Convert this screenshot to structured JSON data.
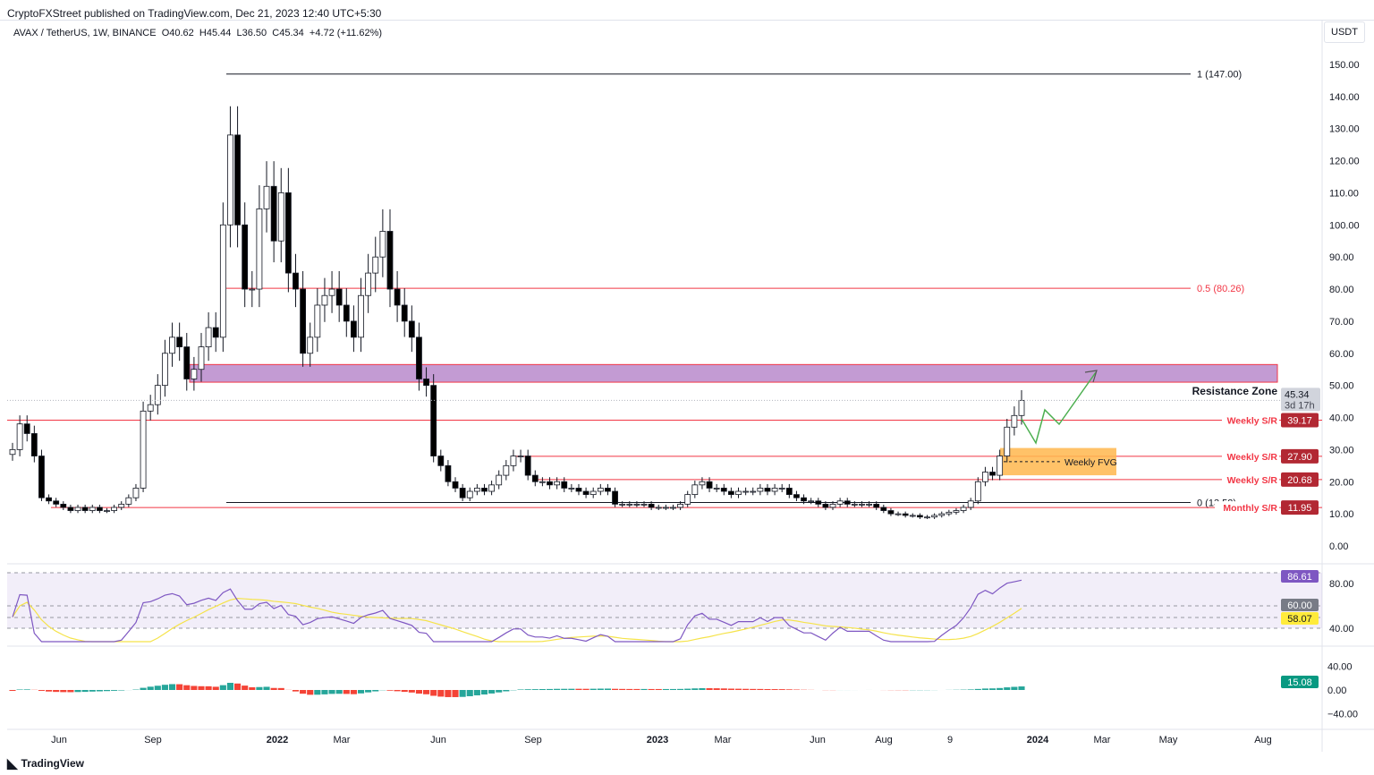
{
  "publisher": "CryptoFXStreet published on TradingView.com, Dec 21, 2023 12:40 UTC+5:30",
  "legend": {
    "symbol": "AVAX / TetherUS, 1W, BINANCE",
    "open": "O40.62",
    "high": "H45.44",
    "low": "L36.50",
    "close": "C45.34",
    "change": "+4.72 (+11.62%)"
  },
  "currency": "USDT",
  "footer": "TradingView",
  "colors": {
    "up": "#ffffff",
    "down": "#000000",
    "sr": "#f23645",
    "zone": "#c39bd3",
    "fvg": "#ffb74d",
    "rsi": "#7e57c2",
    "rsi_ma": "#f5e34a",
    "hist_up": "#26a69a",
    "hist_down": "#f44336",
    "projection": "#4caf50"
  },
  "chart_data": {
    "type": "candlestick",
    "title": "AVAX / TetherUS, 1W, BINANCE",
    "ylabel": "USDT",
    "ylim": [
      0,
      155
    ],
    "price_ticks": [
      "150.00",
      "140.00",
      "130.00",
      "120.00",
      "110.00",
      "100.00",
      "90.00",
      "80.00",
      "70.00",
      "60.00",
      "50.00",
      "40.00",
      "30.00",
      "20.00",
      "10.00",
      "0.00"
    ],
    "time_ticks": [
      "Jun",
      "Sep",
      "2022",
      "Mar",
      "Jun",
      "Sep",
      "2023",
      "Mar",
      "Jun",
      "Aug",
      "9",
      "2024",
      "Mar",
      "May",
      "Aug"
    ],
    "weekly_closes": [
      30,
      38,
      35,
      28,
      15,
      14,
      13,
      12,
      11,
      12,
      11,
      12,
      11,
      11,
      12,
      13,
      15,
      18,
      42,
      44,
      50,
      60,
      65,
      62,
      52,
      55,
      62,
      68,
      65,
      100,
      128,
      100,
      80,
      80,
      105,
      112,
      95,
      110,
      85,
      80,
      60,
      65,
      75,
      78,
      80,
      75,
      70,
      65,
      78,
      85,
      90,
      98,
      80,
      75,
      70,
      65,
      52,
      50,
      28,
      25,
      20,
      18,
      15,
      17,
      18,
      17,
      19,
      22,
      25,
      28,
      28,
      22,
      20,
      20,
      19,
      20,
      18,
      18,
      17,
      16,
      17,
      18,
      17,
      13,
      13,
      13,
      13,
      13,
      12,
      12,
      12,
      12,
      13,
      16,
      19,
      20,
      18,
      18,
      17,
      16,
      17,
      17,
      17,
      18,
      17,
      18,
      18,
      16,
      15,
      14,
      14,
      13,
      12,
      13,
      14,
      13,
      13,
      13,
      13,
      12,
      11,
      10,
      10,
      9.5,
      9.5,
      9,
      9,
      9.5,
      10,
      10.5,
      11,
      12,
      14,
      20,
      23,
      22,
      28,
      37,
      40.62,
      45.34
    ],
    "last_price": "45.34",
    "countdown": "3d 17h",
    "fib": [
      {
        "label": "1 (147.00)",
        "value": 147
      },
      {
        "label": "0.5 (80.26)",
        "value": 80.26
      },
      {
        "label": "0 (13.52)",
        "value": 13.52
      }
    ],
    "levels": [
      {
        "label": "Weekly S/R",
        "value": 39.17,
        "tag": "39.17"
      },
      {
        "label": "Weekly S/R",
        "value": 27.9,
        "tag": "27.90"
      },
      {
        "label": "Weekly S/R",
        "value": 20.68,
        "tag": "20.68"
      },
      {
        "label": "Monthly S/R",
        "value": 11.95,
        "tag": "11.95"
      }
    ],
    "resistance_zone": {
      "label": "Resistance Zone",
      "from": 51,
      "to": 56.5
    },
    "fvg": {
      "label": "Weekly FVG",
      "from": 22,
      "to": 30.5
    },
    "rsi": {
      "ticks": [
        "80.00",
        "40.00"
      ],
      "value": "86.61",
      "level": "60.00",
      "ma": "58.07"
    },
    "histogram": {
      "ticks": [
        "40.00",
        "0.00",
        "−40.00"
      ],
      "value": "15.08"
    }
  }
}
